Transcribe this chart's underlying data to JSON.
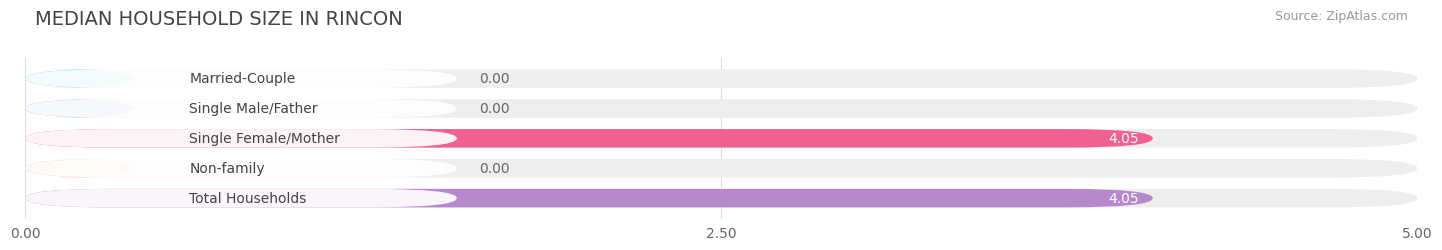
{
  "title": "MEDIAN HOUSEHOLD SIZE IN RINCON",
  "source": "Source: ZipAtlas.com",
  "categories": [
    "Married-Couple",
    "Single Male/Father",
    "Single Female/Mother",
    "Non-family",
    "Total Households"
  ],
  "values": [
    0.0,
    0.0,
    4.05,
    0.0,
    4.05
  ],
  "bar_colors": [
    "#6ecfcf",
    "#a0b4e0",
    "#f06090",
    "#f5c896",
    "#b888cc"
  ],
  "xlim": [
    0,
    5.0
  ],
  "xticks": [
    0.0,
    2.5,
    5.0
  ],
  "xtick_labels": [
    "0.00",
    "2.50",
    "5.00"
  ],
  "value_label_color_zero": "#666666",
  "value_label_color_nonzero": "#ffffff",
  "title_fontsize": 14,
  "source_fontsize": 9,
  "label_fontsize": 10,
  "tick_fontsize": 10,
  "background_color": "#ffffff",
  "bar_height": 0.62,
  "grid_color": "#dddddd",
  "bar_bg_color": "#eeeeee"
}
